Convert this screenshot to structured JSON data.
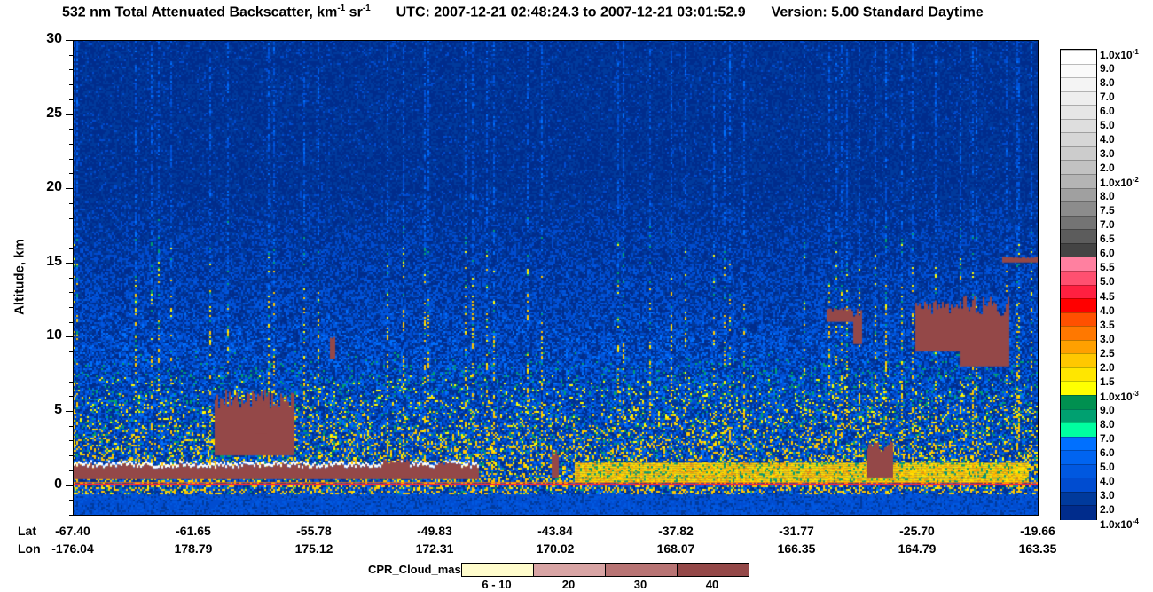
{
  "title": {
    "part1": "532 nm Total Attenuated Backscatter, km",
    "exp1": "-1",
    "part2": " sr",
    "exp2": "-1",
    "utc": "UTC:  2007-12-21 02:48:24.3  to  2007-12-21 03:01:52.9",
    "version": "Version: 5.00  Standard  Daytime"
  },
  "colorbar": {
    "labels": [
      {
        "text": "1.0x10",
        "exp": "-1"
      },
      {
        "text": "9.0"
      },
      {
        "text": "8.0"
      },
      {
        "text": "7.0"
      },
      {
        "text": "6.0"
      },
      {
        "text": "5.0"
      },
      {
        "text": "4.0"
      },
      {
        "text": "3.0"
      },
      {
        "text": "2.0"
      },
      {
        "text": "1.0x10",
        "exp": "-2"
      },
      {
        "text": "8.0"
      },
      {
        "text": "7.5"
      },
      {
        "text": "7.0"
      },
      {
        "text": "6.5"
      },
      {
        "text": "6.0"
      },
      {
        "text": "5.5"
      },
      {
        "text": "5.0"
      },
      {
        "text": "4.5"
      },
      {
        "text": "4.0"
      },
      {
        "text": "3.5"
      },
      {
        "text": "3.0"
      },
      {
        "text": "2.5"
      },
      {
        "text": "2.0"
      },
      {
        "text": "1.5"
      },
      {
        "text": "1.0x10",
        "exp": "-3"
      },
      {
        "text": "9.0"
      },
      {
        "text": "8.0"
      },
      {
        "text": "7.0"
      },
      {
        "text": "6.0"
      },
      {
        "text": "5.0"
      },
      {
        "text": "4.0"
      },
      {
        "text": "3.0"
      },
      {
        "text": "2.0"
      },
      {
        "text": "1.0x10",
        "exp": "-4"
      }
    ],
    "colors": [
      "#ffffff",
      "#fafafa",
      "#f4f4f4",
      "#eeeeee",
      "#e6e6e6",
      "#dedede",
      "#d6d6d6",
      "#cccccc",
      "#c2c2c2",
      "#b4b4b4",
      "#a0a0a0",
      "#8c8c8c",
      "#747474",
      "#5c5c5c",
      "#444444",
      "#ff80a0",
      "#ff5070",
      "#ff2040",
      "#ff0000",
      "#ff5000",
      "#ff7800",
      "#ffa000",
      "#ffc800",
      "#ffe600",
      "#ffff00",
      "#009050",
      "#00a070",
      "#00ffa0",
      "#0070ff",
      "#0064f0",
      "#0058e0",
      "#004cd0",
      "#003a9c",
      "#002c8c"
    ]
  },
  "chart_data": {
    "type": "heatmap",
    "title": "532 nm Total Attenuated Backscatter, km-1 sr-1",
    "ylabel": "Altitude, km",
    "ylim": [
      -2,
      30
    ],
    "yticks": [
      "30",
      "25",
      "20",
      "15",
      "10",
      "5",
      "0"
    ],
    "x_axis": {
      "lat_label": "Lat",
      "lon_label": "Lon",
      "lat": [
        "-67.40",
        "-61.65",
        "-55.78",
        "-49.83",
        "-43.84",
        "-37.82",
        "-31.77",
        "-25.70",
        "-19.66"
      ],
      "lon": [
        "-176.04",
        "178.79",
        "175.12",
        "172.31",
        "170.02",
        "168.07",
        "166.35",
        "164.79",
        "163.35"
      ]
    },
    "surface_altitude_km": 0,
    "cpr_cloud_mask": {
      "title": "CPR_Cloud_mask",
      "labels": [
        "6 - 10",
        "20",
        "30",
        "40"
      ],
      "colors": [
        "#fffccc",
        "#d8a4a4",
        "#b87474",
        "#944848"
      ]
    }
  }
}
